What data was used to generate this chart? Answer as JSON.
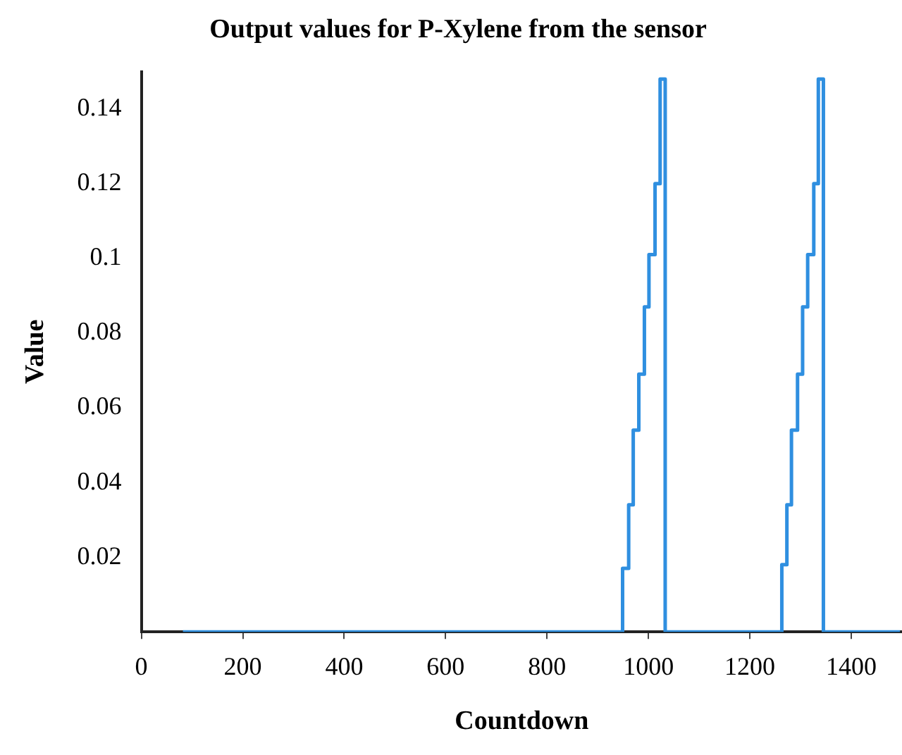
{
  "chart_data": {
    "type": "step",
    "title": "Output values for P-Xylene from the sensor",
    "xlabel": "Countdown",
    "ylabel": "Value",
    "x": [
      82,
      949,
      961,
      970,
      981,
      992,
      1001,
      1013,
      1023,
      1033,
      1263,
      1273,
      1282,
      1294,
      1304,
      1314,
      1326,
      1335,
      1345,
      1496
    ],
    "values": [
      0,
      0.017,
      0.034,
      0.054,
      0.069,
      0.087,
      0.101,
      0.12,
      0.148,
      0,
      0.018,
      0.034,
      0.054,
      0.069,
      0.087,
      0.101,
      0.12,
      0.148,
      0,
      0
    ],
    "color": "#2f8fe0",
    "xlim": [
      0,
      1500
    ],
    "xticks": [
      0,
      200,
      400,
      600,
      800,
      1000,
      1200,
      1400
    ],
    "ylim": [
      0,
      0.15
    ],
    "yticks": [
      {
        "value": 0.02,
        "label": "0.02"
      },
      {
        "value": 0.04,
        "label": "0.04"
      },
      {
        "value": 0.06,
        "label": "0.06"
      },
      {
        "value": 0.08,
        "label": "0.08"
      },
      {
        "value": 0.1,
        "label": "0.1"
      },
      {
        "value": 0.12,
        "label": "0.12"
      },
      {
        "value": 0.14,
        "label": "0.14"
      }
    ],
    "grid": false,
    "legend": false,
    "marker": "none",
    "line_style": "solid"
  }
}
